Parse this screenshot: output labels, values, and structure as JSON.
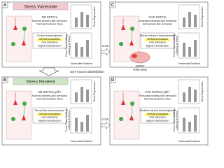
{
  "panels": [
    {
      "letter": "A",
      "title": "Stress Vulnerable",
      "genotype": "NS SSTCre",
      "phenotype": [
        "Normal anxiety-like behavior",
        "Normal hedonic drive"
      ],
      "transcriptome": [
        "Control transcriptome",
        "mRNA translation",
        "Cell adhesion",
        "Signal transduction"
      ],
      "chart_titles": [
        "Gene Expression",
        "Face Time Sniffing",
        "Latency to Feed"
      ],
      "groups": [
        "Vulnerable",
        "Resilient"
      ]
    },
    {
      "letter": "B",
      "title": "Stress Resilient",
      "genotype": "NS SSTCre;γ2f/+",
      "phenotype": [
        "Normal anxiety-like behavior",
        "Normal hedonic drive"
      ],
      "transcriptome": [
        "Stress like transcriptome",
        "mRNA translation",
        "Cell adhesion",
        "Signal transduction"
      ],
      "chart_titles": [
        "Gene Expression",
        "Face Time Sniffing",
        "Latency to Feed"
      ],
      "groups": [
        "Vulnerable",
        "Resilient"
      ]
    },
    {
      "letter": "C",
      "genotype": "CVS SSTCre",
      "phenotype": [
        "Increased anxiety-like behavior",
        "Anhedonia like behavior"
      ],
      "transcriptome": [
        "Stress-induced transcriptome",
        "mRNA translation",
        "Cell adhesion",
        "Signal transduction"
      ],
      "chart_titles": [
        "Gene Expression",
        "Face Time Sniffing",
        "Latency to Feed"
      ],
      "groups": [
        "Vulnerable",
        "Resilient"
      ]
    },
    {
      "letter": "D",
      "genotype": "CVS SSTCre;γ2f/+",
      "phenotype": [
        "Reduced anxiety-like behavior",
        "Normal hedonic drive"
      ],
      "transcriptome": [
        "Resilient stress transcriptome",
        "mRNA translation",
        "Cell adhesion",
        "Signal transduction"
      ],
      "chart_titles": [
        "Gene Expression",
        "Face Time Sniffing",
        "Latency to Feed"
      ],
      "groups": [
        "Vulnerable",
        "Resilient"
      ]
    }
  ],
  "arrows": {
    "down": "SST neuron disinhibition",
    "cvs_top": "CVS",
    "cvs_bottom": "CVS"
  },
  "brain": [
    "mPFC",
    "RNA-Seq"
  ]
}
